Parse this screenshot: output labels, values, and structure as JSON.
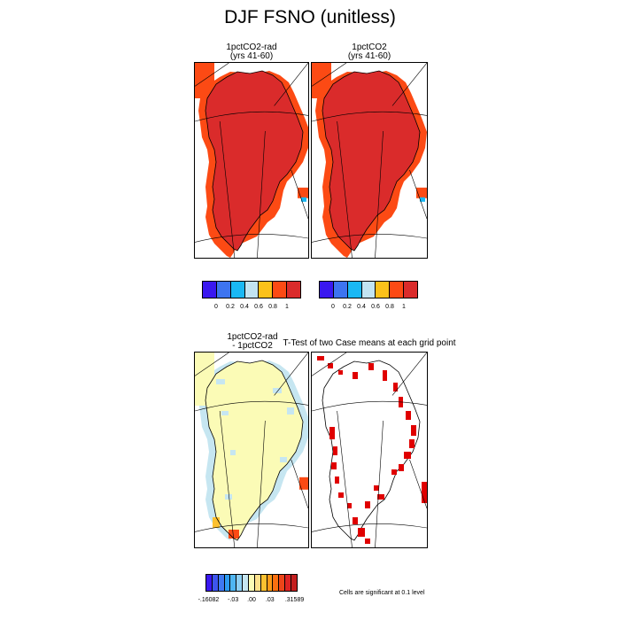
{
  "title": "DJF FSNO (unitless)",
  "panels": {
    "top_left": {
      "title_line1": "1pctCO2-rad",
      "title_line2": "(yrs 41-60)"
    },
    "top_right": {
      "title_line1": "1pctCO2",
      "title_line2": "(yrs 41-60)"
    },
    "bottom_left": {
      "title_line1": "1pctCO2-rad",
      "title_line2": "- 1pctCO2"
    },
    "bottom_right": {
      "title": "T-Test of two Case means at each grid point"
    }
  },
  "colorbar_top": {
    "colors": [
      "#3a18f0",
      "#3d74f0",
      "#1ab8f4",
      "#c2e4f2",
      "#fbc11a",
      "#fc4a14",
      "#da2b2b"
    ],
    "labels": [
      "0",
      "0.2",
      "0.4",
      "0.6",
      "0.8",
      "1"
    ]
  },
  "colorbar_bottom": {
    "colors": [
      "#3a18f0",
      "#3d55ee",
      "#3f79f1",
      "#2c9bf0",
      "#4fb6f2",
      "#8fd0f3",
      "#c6e6f1",
      "#fbfbb6",
      "#fde18c",
      "#fcc130",
      "#fd9b18",
      "#fb7010",
      "#ed4519",
      "#dd2323",
      "#c41f1f"
    ],
    "labels": [
      "-.16082",
      "-.03",
      ".00",
      ".03",
      ".31589"
    ]
  },
  "note": "Cells are significant at 0.1 level",
  "map_colors": {
    "ocean_cell": "#fc4a14",
    "land_cell": "#da2b2b",
    "diff_land": "#fbfbb6",
    "diff_neg": "#c6e6f1",
    "diff_pos": "#fc4a14",
    "significant": "#e00000"
  }
}
